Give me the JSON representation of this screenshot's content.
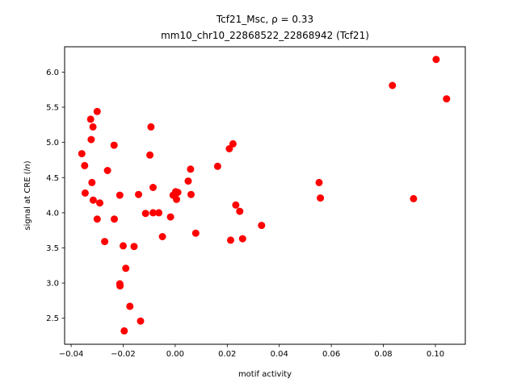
{
  "chart_data": {
    "type": "scatter",
    "title_line1": "Tcf21_Msc, ρ = 0.33",
    "title_line2": "mm10_chr10_22868522_22868942 (Tcf21)",
    "xlabel": "motif activity",
    "ylabel": "signal at CRE (ln)",
    "xlim": [
      -0.0425,
      0.1115
    ],
    "ylim": [
      2.13,
      6.36
    ],
    "xticks": [
      -0.04,
      -0.02,
      0.0,
      0.02,
      0.04,
      0.06,
      0.08,
      0.1
    ],
    "xtick_labels": [
      "−0.04",
      "−0.02",
      "0.00",
      "0.02",
      "0.04",
      "0.06",
      "0.08",
      "0.10"
    ],
    "yticks": [
      2.5,
      3.0,
      3.5,
      4.0,
      4.5,
      5.0,
      5.5,
      6.0
    ],
    "ytick_labels": [
      "2.5",
      "3.0",
      "3.5",
      "4.0",
      "4.5",
      "5.0",
      "5.5",
      "6.0"
    ],
    "grid": false,
    "marker_color": "#ff0000",
    "points": [
      {
        "x": -0.0359,
        "y": 4.84
      },
      {
        "x": -0.0348,
        "y": 4.67
      },
      {
        "x": -0.0346,
        "y": 4.28
      },
      {
        "x": -0.0325,
        "y": 5.33
      },
      {
        "x": -0.0323,
        "y": 5.04
      },
      {
        "x": -0.032,
        "y": 4.43
      },
      {
        "x": -0.0316,
        "y": 5.22
      },
      {
        "x": -0.0315,
        "y": 4.18
      },
      {
        "x": -0.03,
        "y": 5.44
      },
      {
        "x": -0.03,
        "y": 3.91
      },
      {
        "x": -0.029,
        "y": 4.14
      },
      {
        "x": -0.0271,
        "y": 3.59
      },
      {
        "x": -0.026,
        "y": 4.6
      },
      {
        "x": -0.0235,
        "y": 4.96
      },
      {
        "x": -0.0234,
        "y": 3.91
      },
      {
        "x": -0.0213,
        "y": 4.25
      },
      {
        "x": -0.0213,
        "y": 2.99
      },
      {
        "x": -0.0212,
        "y": 2.96
      },
      {
        "x": -0.02,
        "y": 3.53
      },
      {
        "x": -0.0196,
        "y": 2.32
      },
      {
        "x": -0.019,
        "y": 3.21
      },
      {
        "x": -0.0174,
        "y": 2.67
      },
      {
        "x": -0.0158,
        "y": 3.52
      },
      {
        "x": -0.0141,
        "y": 4.26
      },
      {
        "x": -0.0133,
        "y": 2.46
      },
      {
        "x": -0.0114,
        "y": 3.99
      },
      {
        "x": -0.0097,
        "y": 4.82
      },
      {
        "x": -0.0093,
        "y": 5.22
      },
      {
        "x": -0.0085,
        "y": 4.36
      },
      {
        "x": -0.0085,
        "y": 4.0
      },
      {
        "x": -0.0063,
        "y": 4.0
      },
      {
        "x": -0.0049,
        "y": 3.66
      },
      {
        "x": -0.0018,
        "y": 3.94
      },
      {
        "x": -0.0008,
        "y": 4.25
      },
      {
        "x": 0.0002,
        "y": 4.3
      },
      {
        "x": 0.0005,
        "y": 4.19
      },
      {
        "x": 0.001,
        "y": 4.29
      },
      {
        "x": 0.005,
        "y": 4.45
      },
      {
        "x": 0.0059,
        "y": 4.62
      },
      {
        "x": 0.0061,
        "y": 4.26
      },
      {
        "x": 0.0079,
        "y": 3.71
      },
      {
        "x": 0.0163,
        "y": 4.66
      },
      {
        "x": 0.0208,
        "y": 4.91
      },
      {
        "x": 0.0213,
        "y": 3.61
      },
      {
        "x": 0.0222,
        "y": 4.98
      },
      {
        "x": 0.0233,
        "y": 4.11
      },
      {
        "x": 0.0248,
        "y": 4.02
      },
      {
        "x": 0.0259,
        "y": 3.63
      },
      {
        "x": 0.0332,
        "y": 3.82
      },
      {
        "x": 0.0553,
        "y": 4.43
      },
      {
        "x": 0.0558,
        "y": 4.21
      },
      {
        "x": 0.0835,
        "y": 5.81
      },
      {
        "x": 0.0916,
        "y": 4.2
      },
      {
        "x": 0.1003,
        "y": 6.18
      },
      {
        "x": 0.1043,
        "y": 5.62
      }
    ]
  }
}
